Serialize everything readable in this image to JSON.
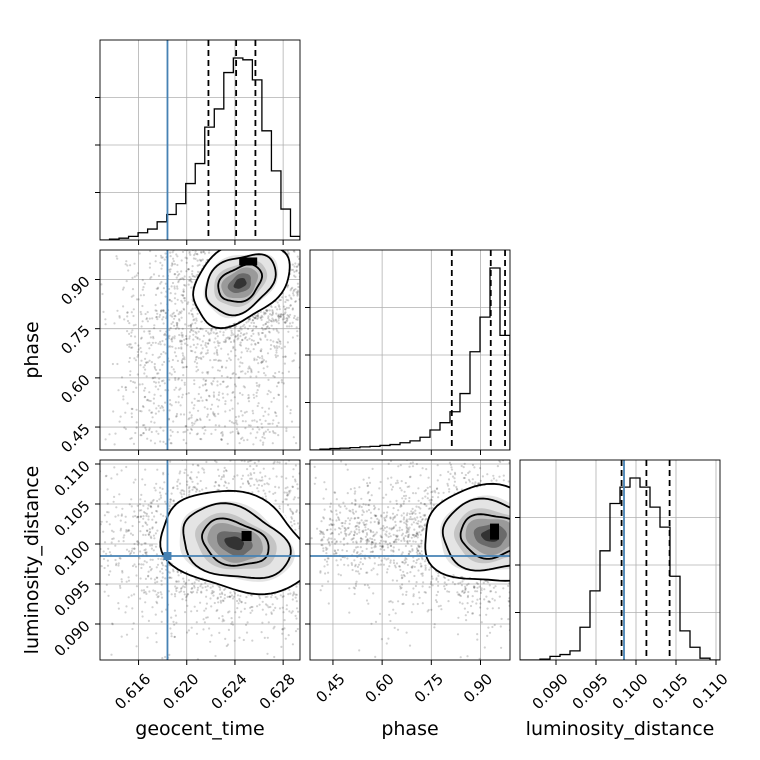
{
  "chart_data": {
    "type": "corner",
    "parameters": [
      "geocent_time",
      "phase",
      "luminosity_distance"
    ],
    "axis_labels": {
      "x": [
        "geocent_time",
        "phase",
        "luminosity_distance"
      ],
      "y": [
        "",
        "phase",
        "luminosity_distance"
      ]
    },
    "ranges": {
      "geocent_time": [
        0.6128,
        0.6294
      ],
      "phase": [
        0.38,
        0.99
      ],
      "luminosity_distance": [
        0.0855,
        0.1105
      ]
    },
    "ticks": {
      "geocent_time": [
        "0.616",
        "0.620",
        "0.624",
        "0.628"
      ],
      "phase": [
        "0.45",
        "0.60",
        "0.75",
        "0.90"
      ],
      "luminosity_distance": [
        "0.090",
        "0.095",
        "0.100",
        "0.105",
        "0.110"
      ]
    },
    "truths": {
      "geocent_time": 0.6184,
      "phase": null,
      "luminosity_distance": 0.0985
    },
    "quantiles": {
      "geocent_time": [
        0.6218,
        0.6241,
        0.6257
      ],
      "phase": [
        0.8125,
        0.9313,
        0.9749
      ],
      "luminosity_distance": [
        0.0982,
        0.1013,
        0.1042
      ]
    },
    "histograms": {
      "geocent_time": {
        "edges_range": [
          0.6128,
          0.6294
        ],
        "counts": [
          0,
          0.5,
          1,
          2,
          4,
          6,
          10,
          14,
          20,
          31,
          42,
          62,
          72,
          92,
          100,
          99,
          88,
          60,
          38,
          17,
          2
        ]
      },
      "phase": {
        "edges_range": [
          0.38,
          0.99
        ],
        "counts": [
          0,
          0.5,
          0.8,
          1,
          1.3,
          1.7,
          2,
          2.5,
          3,
          4,
          5,
          7,
          11,
          15,
          21,
          31,
          54,
          73,
          100,
          63
        ]
      },
      "luminosity_distance": {
        "edges_range": [
          0.0855,
          0.1105
        ],
        "counts": [
          0,
          0,
          0.5,
          2,
          3,
          5,
          18,
          38,
          60,
          86,
          95,
          100,
          95,
          84,
          73,
          46,
          16,
          7,
          1,
          0
        ]
      }
    },
    "density_2d": {
      "phase_vs_geocent_time": {
        "peak": [
          0.6251,
          0.955
        ]
      },
      "luminosity_distance_vs_geocent_time": {
        "peak": [
          0.6248,
          0.1005
        ]
      },
      "luminosity_distance_vs_phase": {
        "peak": [
          0.955,
          0.1013
        ]
      }
    },
    "grid": true
  }
}
